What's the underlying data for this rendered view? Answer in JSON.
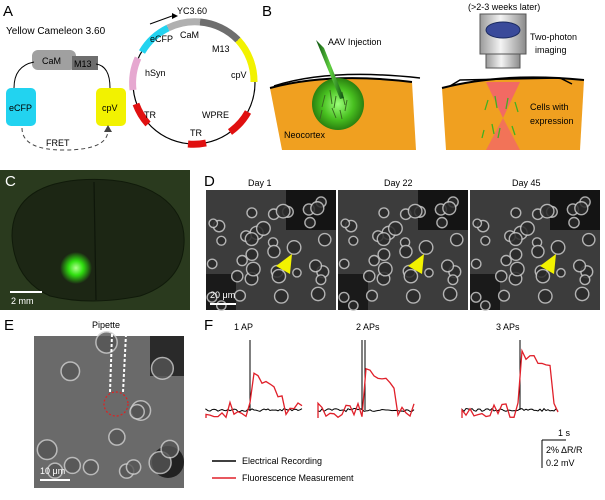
{
  "panels": {
    "A": {
      "letter": "A",
      "title": "Yellow Cameleon 3.60",
      "cam": "CaM",
      "m13": "M13",
      "ecfp": "eCFP",
      "cpv": "cpV",
      "fret": "FRET",
      "plasmid": {
        "name": "YC3.60",
        "segments": [
          "eCFP",
          "CaM",
          "M13",
          "cpV",
          "WPRE",
          "TR",
          "TR",
          "hSyn"
        ]
      }
    },
    "B": {
      "letter": "B",
      "aav": "AAV Injection",
      "neocortex": "Neocortex",
      "later": "(>2-3 weeks later)",
      "twophoton1": "Two-photon",
      "twophoton2": "imaging",
      "cells1": "Cells with",
      "cells2": "expression"
    },
    "C": {
      "letter": "C",
      "scale": "2 mm"
    },
    "D": {
      "letter": "D",
      "days": [
        "Day 1",
        "Day 22",
        "Day 45"
      ],
      "scale": "20 μm"
    },
    "E": {
      "letter": "E",
      "pipette": "Pipette",
      "scale": "10 μm"
    },
    "F": {
      "letter": "F",
      "ap_labels": [
        "1 AP",
        "2 APs",
        "3 APs"
      ],
      "legend": {
        "electrical": "Electrical Recording",
        "fluorescence": "Fluorescence Measurement"
      },
      "scale_time": "1 s",
      "scale_ratio": "2% ΔR/R",
      "scale_mv": "0.2 mV"
    }
  },
  "colors": {
    "ecfp": "#22d3f0",
    "cpv": "#f2f200",
    "cam": "#a0a0a0",
    "m13": "#6e6e6e",
    "hsyn": "#e6a8d0",
    "tr": "#e01010",
    "brain": "#f0a020",
    "fluorescence": "#e0202a",
    "electrical": "#000000"
  },
  "chart_data": {
    "type": "line",
    "series": [
      {
        "name": "Electrical Recording",
        "values": []
      },
      {
        "name": "Fluorescence Measurement",
        "values": []
      }
    ]
  }
}
